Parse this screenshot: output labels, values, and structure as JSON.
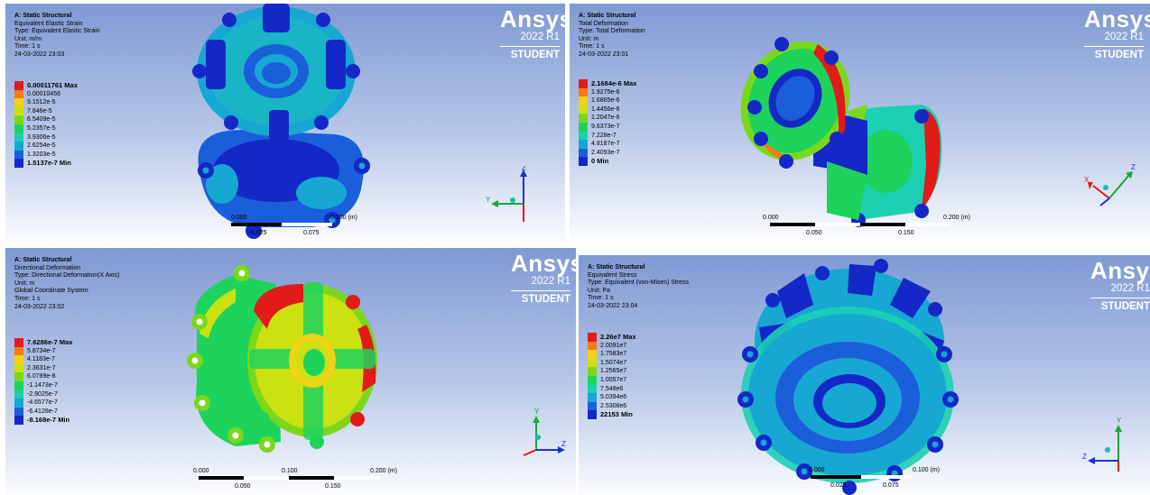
{
  "colors": {
    "c1": "#1428c8",
    "c2": "#1b5ed9",
    "c3": "#17a7d3",
    "c4": "#1cd0b3",
    "c5": "#1ed35c",
    "c6": "#7ad81b",
    "c7": "#cbe111",
    "c8": "#efd314",
    "c9": "#f47b16",
    "c10": "#e11a1a"
  },
  "brand": {
    "logo": "Ansys",
    "release": "2022 R1",
    "edition": "STUDENT"
  },
  "panels": [
    {
      "id": "strain",
      "title": "A: Static Structural",
      "lines": [
        "Equivalent Elastic Strain",
        "Type: Equivalent Elastic Strain",
        "Unit: m/m",
        "Time: 1 s",
        "24-03-2022 23:03"
      ],
      "legend": [
        "0.00011761 Max",
        "0.00010456",
        "9.1512e-5",
        "7.846e-5",
        "6.5409e-5",
        "5.2357e-5",
        "3.9306e-5",
        "2.6254e-5",
        "1.3203e-5",
        "1.5137e-7 Min"
      ],
      "scale": {
        "ticks_top": [
          "0.000",
          "0.100 (m)"
        ],
        "ticks_bottom": [
          "0.025",
          "0.075"
        ]
      },
      "triad": {
        "a": "Z",
        "b": "Y"
      }
    },
    {
      "id": "total",
      "title": "A: Static Structural",
      "lines": [
        "Total Deformation",
        "Type: Total Deformation",
        "Unit: m",
        "Time: 1 s",
        "24-03-2022 23:01"
      ],
      "legend": [
        "2.1684e-6 Max",
        "1.9275e-6",
        "1.6865e-6",
        "1.4456e-6",
        "1.2047e-6",
        "9.6373e-7",
        "7.228e-7",
        "4.8187e-7",
        "2.4093e-7",
        "0 Min"
      ],
      "scale": {
        "ticks_top": [
          "0.000",
          "0.200 (m)"
        ],
        "ticks_bottom": [
          "0.050",
          "0.150"
        ]
      },
      "triad": {
        "a": "Z",
        "b": "X"
      }
    },
    {
      "id": "directional",
      "title": "A: Static Structural",
      "lines": [
        "Directional Deformation",
        "Type: Directional Deformation(X Axis)",
        "Unit: m",
        "Global Coordinate System",
        "Time: 1 s",
        "24-03-2022 23:02"
      ],
      "legend": [
        "7.6286e-7 Max",
        "5.8734e-7",
        "4.1183e-7",
        "2.3631e-7",
        "6.0789e-8",
        "-1.1473e-7",
        "-2.9025e-7",
        "-4.6577e-7",
        "-6.4128e-7",
        "-8.168e-7 Min"
      ],
      "scale": {
        "ticks_top": [
          "0.000",
          "0.100",
          "0.200 (m)"
        ],
        "ticks_bottom": [
          "0.050",
          "0.150"
        ]
      },
      "triad": {
        "a": "Y",
        "b": "Z"
      }
    },
    {
      "id": "stress",
      "title": "A: Static Structural",
      "lines": [
        "Equivalent Stress",
        "Type: Equivalent (von-Mises) Stress",
        "Unit: Pa",
        "Time: 1 s",
        "24-03-2022 23:04"
      ],
      "legend": [
        "2.26e7 Max",
        "2.0091e7",
        "1.7583e7",
        "1.5074e7",
        "1.2565e7",
        "1.0057e7",
        "7.548e6",
        "5.0394e6",
        "2.5308e6",
        "22153 Min"
      ],
      "scale": {
        "ticks_top": [
          "0.000",
          "0.100 (m)"
        ],
        "ticks_bottom": [
          "0.025",
          "0.075"
        ]
      },
      "triad": {
        "a": "Y",
        "b": "Z"
      }
    }
  ]
}
